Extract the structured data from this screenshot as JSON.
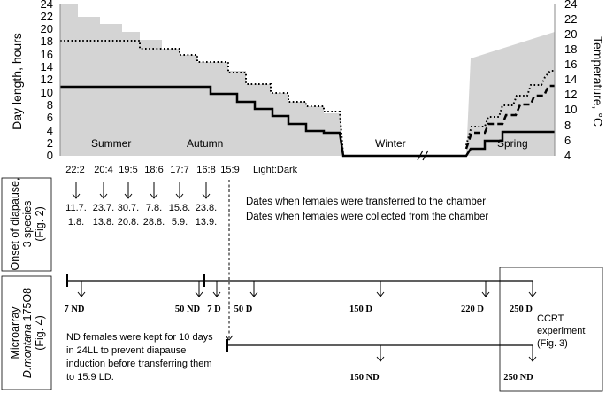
{
  "left_axis": {
    "label": "Day length, hours",
    "ticks": [
      "0",
      "2",
      "4",
      "6",
      "8",
      "10",
      "12",
      "14",
      "16",
      "18",
      "20",
      "22",
      "24"
    ]
  },
  "right_axis": {
    "label": "Temperature, °C",
    "ticks": [
      "4",
      "6",
      "8",
      "10",
      "12",
      "14",
      "16",
      "18",
      "20",
      "22",
      "24"
    ]
  },
  "seasons": {
    "summer": "Summer",
    "autumn": "Autumn",
    "winter": "Winter",
    "spring": "Spring"
  },
  "light_dark": {
    "values": [
      "22:2",
      "20:4",
      "19:5",
      "18:6",
      "17:7",
      "16:8",
      "15:9"
    ],
    "label": "Light:Dark"
  },
  "transfer_dates": [
    "11.7.",
    "23.7.",
    "30.7.",
    "7.8.",
    "15.8.",
    "23.8."
  ],
  "collect_dates": [
    "1.8.",
    "13.8.",
    "20.8.",
    "28.8.",
    "5.9.",
    "13.9."
  ],
  "legend": {
    "transfer": "Dates when females were transferred to the chamber",
    "collect": "Dates when females were collected from the chamber"
  },
  "onset_box": {
    "line1": "Onset of diapause,",
    "line2": "3 species",
    "line3": "(Fig. 2)"
  },
  "microarray_box": {
    "line1": "Microarray",
    "line2a": "D.montana",
    "line2b": "175O8",
    "line3": "(Fig. 4)"
  },
  "timeline1": {
    "labels": [
      "7 ND",
      "50 ND",
      "7 D",
      "50 D",
      "150 D",
      "220 D",
      "250 D"
    ]
  },
  "timeline2": {
    "labels": [
      "150 ND",
      "250 ND"
    ]
  },
  "nd_note": {
    "line1": "ND females were kept for 10 days",
    "line2": "in 24LL to prevent diapause",
    "line3": "induction before transferring them",
    "line4": "to 15:9 LD."
  },
  "ccrt": {
    "line1": "CCRT",
    "line2": "experiment",
    "line3": "(Fig. 3)"
  }
}
